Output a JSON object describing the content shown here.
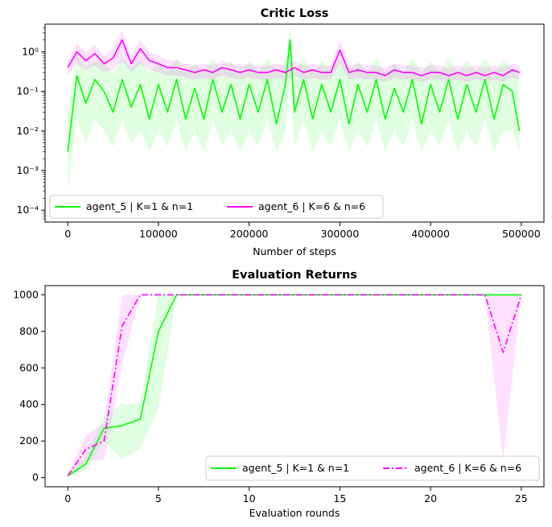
{
  "chart_data": [
    {
      "type": "line",
      "title": "Critic Loss",
      "xlabel": "Number of steps",
      "ylabel": "",
      "yscale": "log",
      "xlim": [
        -25000,
        525000
      ],
      "ylim": [
        5e-05,
        5
      ],
      "x_ticks": [
        0,
        100000,
        200000,
        300000,
        400000,
        500000
      ],
      "x_tick_labels": [
        "0",
        "100000",
        "200000",
        "300000",
        "400000",
        "500000"
      ],
      "y_ticks": [
        0.0001,
        0.001,
        0.01,
        0.1,
        1
      ],
      "y_tick_labels": [
        "10⁻⁴",
        "10⁻³",
        "10⁻²",
        "10⁻¹",
        "10⁰"
      ],
      "legend": "lower-left",
      "legend_ncol": 2,
      "series": [
        {
          "name": "agent_5 | K=1 & n=1",
          "color": "#00ff00",
          "dash": "solid",
          "x": [
            0,
            10000,
            20000,
            30000,
            40000,
            50000,
            60000,
            70000,
            80000,
            90000,
            100000,
            110000,
            120000,
            130000,
            140000,
            150000,
            160000,
            170000,
            180000,
            190000,
            200000,
            210000,
            220000,
            230000,
            240000,
            245000,
            250000,
            260000,
            270000,
            280000,
            290000,
            300000,
            310000,
            320000,
            330000,
            340000,
            350000,
            360000,
            370000,
            380000,
            390000,
            400000,
            410000,
            420000,
            430000,
            440000,
            450000,
            460000,
            470000,
            480000,
            490000,
            498000
          ],
          "y": [
            0.003,
            0.25,
            0.05,
            0.2,
            0.1,
            0.03,
            0.2,
            0.04,
            0.15,
            0.02,
            0.15,
            0.03,
            0.2,
            0.02,
            0.12,
            0.02,
            0.2,
            0.03,
            0.15,
            0.02,
            0.15,
            0.03,
            0.2,
            0.015,
            0.15,
            2.0,
            0.03,
            0.2,
            0.02,
            0.15,
            0.03,
            0.2,
            0.015,
            0.15,
            0.03,
            0.2,
            0.02,
            0.12,
            0.03,
            0.2,
            0.015,
            0.15,
            0.03,
            0.2,
            0.02,
            0.15,
            0.03,
            0.2,
            0.02,
            0.15,
            0.1,
            0.01
          ],
          "band_low": [
            0.0003,
            0.02,
            0.005,
            0.02,
            0.01,
            0.004,
            0.02,
            0.005,
            0.01,
            0.003,
            0.01,
            0.004,
            0.02,
            0.003,
            0.01,
            0.003,
            0.02,
            0.004,
            0.01,
            0.003,
            0.01,
            0.004,
            0.02,
            0.003,
            0.01,
            0.2,
            0.004,
            0.02,
            0.003,
            0.01,
            0.004,
            0.02,
            0.003,
            0.01,
            0.004,
            0.02,
            0.003,
            0.01,
            0.004,
            0.02,
            0.003,
            0.01,
            0.004,
            0.02,
            0.003,
            0.01,
            0.004,
            0.02,
            0.003,
            0.01,
            0.01,
            0.003
          ],
          "band_high": [
            0.03,
            0.8,
            0.4,
            0.6,
            0.5,
            0.3,
            0.7,
            0.4,
            0.6,
            0.3,
            0.6,
            0.3,
            0.7,
            0.3,
            0.5,
            0.3,
            0.7,
            0.3,
            0.6,
            0.3,
            0.6,
            0.3,
            0.7,
            0.3,
            0.6,
            4.0,
            0.3,
            0.7,
            0.3,
            0.6,
            0.3,
            0.7,
            0.3,
            0.6,
            0.3,
            0.7,
            0.3,
            0.5,
            0.3,
            0.7,
            0.3,
            0.6,
            0.3,
            0.7,
            0.3,
            0.6,
            0.3,
            0.7,
            0.3,
            0.6,
            0.4,
            0.2
          ]
        },
        {
          "name": "agent_6 | K=6 & n=6",
          "color": "#ff00ff",
          "dash": "solid",
          "x": [
            0,
            10000,
            20000,
            30000,
            40000,
            50000,
            60000,
            70000,
            80000,
            90000,
            100000,
            110000,
            120000,
            130000,
            140000,
            150000,
            160000,
            170000,
            180000,
            190000,
            200000,
            210000,
            220000,
            230000,
            240000,
            250000,
            260000,
            270000,
            280000,
            290000,
            300000,
            310000,
            320000,
            330000,
            340000,
            350000,
            360000,
            370000,
            380000,
            390000,
            400000,
            410000,
            420000,
            430000,
            440000,
            450000,
            460000,
            470000,
            480000,
            490000,
            498000
          ],
          "y": [
            0.4,
            1.0,
            0.6,
            0.9,
            0.5,
            0.7,
            2.0,
            0.5,
            1.2,
            0.6,
            0.5,
            0.4,
            0.4,
            0.35,
            0.3,
            0.35,
            0.3,
            0.4,
            0.35,
            0.3,
            0.35,
            0.3,
            0.3,
            0.35,
            0.3,
            0.4,
            0.3,
            0.35,
            0.3,
            0.3,
            1.1,
            0.3,
            0.35,
            0.3,
            0.3,
            0.25,
            0.35,
            0.3,
            0.3,
            0.25,
            0.3,
            0.3,
            0.25,
            0.3,
            0.25,
            0.3,
            0.25,
            0.3,
            0.25,
            0.35,
            0.3
          ],
          "band_low": [
            0.25,
            0.5,
            0.35,
            0.45,
            0.3,
            0.35,
            0.6,
            0.3,
            0.5,
            0.35,
            0.3,
            0.25,
            0.25,
            0.22,
            0.2,
            0.22,
            0.2,
            0.25,
            0.22,
            0.2,
            0.22,
            0.2,
            0.2,
            0.22,
            0.2,
            0.25,
            0.2,
            0.22,
            0.2,
            0.2,
            0.5,
            0.2,
            0.22,
            0.2,
            0.2,
            0.17,
            0.22,
            0.2,
            0.2,
            0.17,
            0.2,
            0.2,
            0.17,
            0.2,
            0.17,
            0.2,
            0.17,
            0.2,
            0.17,
            0.22,
            0.2
          ],
          "band_high": [
            0.6,
            1.6,
            1.0,
            1.5,
            0.8,
            1.2,
            3.5,
            0.8,
            2.0,
            1.0,
            0.8,
            0.6,
            0.6,
            0.5,
            0.45,
            0.5,
            0.45,
            0.6,
            0.5,
            0.45,
            0.5,
            0.45,
            0.45,
            0.5,
            0.45,
            0.6,
            0.45,
            0.5,
            0.45,
            0.45,
            2.0,
            0.45,
            0.5,
            0.45,
            0.45,
            0.4,
            0.5,
            0.45,
            0.45,
            0.4,
            0.45,
            0.45,
            0.4,
            0.45,
            0.4,
            0.45,
            0.4,
            0.45,
            0.4,
            0.5,
            0.45
          ]
        }
      ]
    },
    {
      "type": "line",
      "title": "Evaluation Returns",
      "xlabel": "Evaluation rounds",
      "ylabel": "",
      "yscale": "linear",
      "xlim": [
        -1.25,
        26.25
      ],
      "ylim": [
        -50,
        1050
      ],
      "x_ticks": [
        0,
        5,
        10,
        15,
        20,
        25
      ],
      "x_tick_labels": [
        "0",
        "5",
        "10",
        "15",
        "20",
        "25"
      ],
      "y_ticks": [
        0,
        200,
        400,
        600,
        800,
        1000
      ],
      "y_tick_labels": [
        "0",
        "200",
        "400",
        "600",
        "800",
        "1000"
      ],
      "legend": "lower-right",
      "legend_ncol": 2,
      "series": [
        {
          "name": "agent_5 | K=1 & n=1",
          "color": "#00ff00",
          "dash": "solid",
          "x": [
            0,
            1,
            2,
            3,
            4,
            5,
            6,
            7,
            8,
            9,
            10,
            11,
            12,
            13,
            14,
            15,
            16,
            17,
            18,
            19,
            20,
            21,
            22,
            23,
            24,
            25
          ],
          "y": [
            10,
            75,
            270,
            285,
            320,
            800,
            1000,
            1000,
            1000,
            1000,
            1000,
            1000,
            1000,
            1000,
            1000,
            1000,
            1000,
            1000,
            1000,
            1000,
            1000,
            1000,
            1000,
            1000,
            1000,
            1000
          ],
          "band_low": [
            5,
            40,
            200,
            100,
            160,
            380,
            1000,
            1000,
            1000,
            1000,
            1000,
            1000,
            1000,
            1000,
            1000,
            1000,
            1000,
            1000,
            1000,
            1000,
            1000,
            1000,
            1000,
            1000,
            1000,
            1000
          ],
          "band_high": [
            15,
            110,
            340,
            400,
            410,
            1000,
            1000,
            1000,
            1000,
            1000,
            1000,
            1000,
            1000,
            1000,
            1000,
            1000,
            1000,
            1000,
            1000,
            1000,
            1000,
            1000,
            1000,
            1000,
            1000,
            1000
          ]
        },
        {
          "name": "agent_6 | K=6 & n=6",
          "color": "#ff00ff",
          "dash": "dashdot",
          "x": [
            0,
            1,
            2,
            3,
            4,
            5,
            6,
            7,
            8,
            9,
            10,
            11,
            12,
            13,
            14,
            15,
            16,
            17,
            18,
            19,
            20,
            21,
            22,
            23,
            24,
            25
          ],
          "y": [
            10,
            155,
            200,
            830,
            1000,
            1000,
            1000,
            1000,
            1000,
            1000,
            1000,
            1000,
            1000,
            1000,
            1000,
            1000,
            1000,
            1000,
            1000,
            1000,
            1000,
            1000,
            1000,
            1000,
            685,
            1000
          ],
          "band_low": [
            5,
            90,
            100,
            620,
            1000,
            1000,
            1000,
            1000,
            1000,
            1000,
            1000,
            1000,
            1000,
            1000,
            1000,
            1000,
            1000,
            1000,
            1000,
            1000,
            1000,
            1000,
            1000,
            1000,
            95,
            1000
          ],
          "band_high": [
            15,
            230,
            300,
            1000,
            1000,
            1000,
            1000,
            1000,
            1000,
            1000,
            1000,
            1000,
            1000,
            1000,
            1000,
            1000,
            1000,
            1000,
            1000,
            1000,
            1000,
            1000,
            1000,
            1000,
            1000,
            1000
          ]
        }
      ]
    }
  ]
}
